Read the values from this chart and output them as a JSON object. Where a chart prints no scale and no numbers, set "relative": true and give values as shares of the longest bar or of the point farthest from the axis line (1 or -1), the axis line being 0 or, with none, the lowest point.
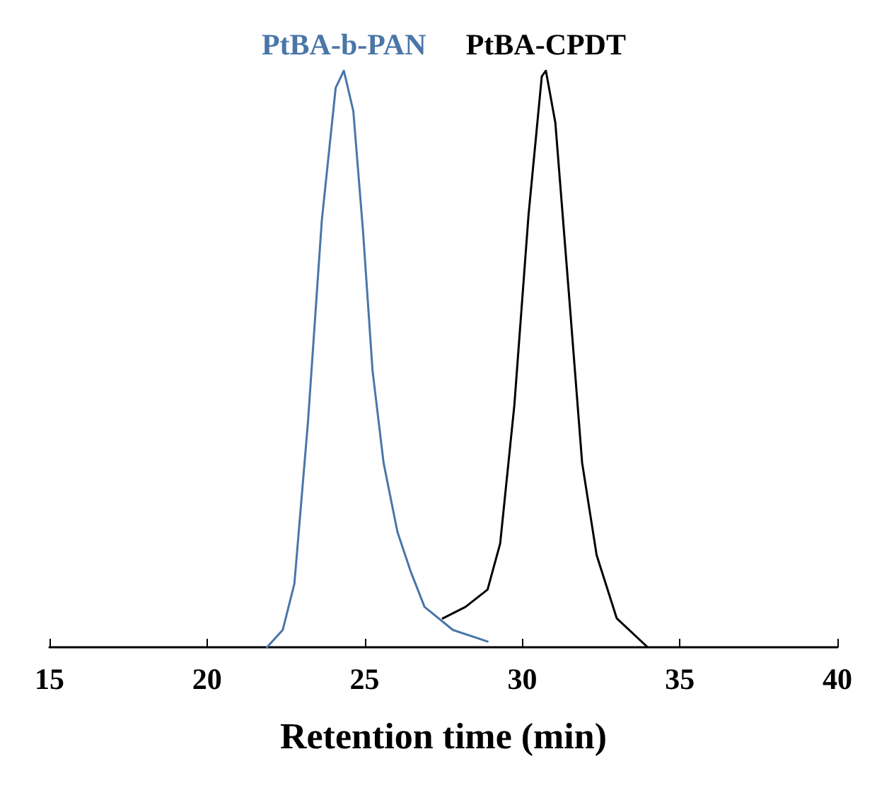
{
  "chart_data": {
    "type": "line",
    "relative": true,
    "xlabel": "Retention time (min)",
    "xlim": [
      15,
      40
    ],
    "xticks": [
      15,
      20,
      25,
      30,
      35,
      40
    ],
    "grid": false,
    "legend": false,
    "marker": "none",
    "line_style": "solid",
    "series": [
      {
        "name": "PtBA-b-PAN",
        "color": "#4a76a8",
        "x": [
          21.9,
          22.4,
          22.77,
          23.2,
          23.64,
          24.08,
          24.34,
          24.64,
          24.95,
          25.25,
          25.6,
          26.04,
          26.47,
          26.9,
          27.8,
          28.9
        ],
        "values": [
          0.0,
          0.03,
          0.11,
          0.39,
          0.74,
          0.97,
          1.0,
          0.93,
          0.72,
          0.48,
          0.32,
          0.2,
          0.13,
          0.07,
          0.03,
          0.01
        ]
      },
      {
        "name": "PtBA-CPDT",
        "color": "#000000",
        "x": [
          27.48,
          28.2,
          28.9,
          29.3,
          29.75,
          30.2,
          30.62,
          30.75,
          31.05,
          31.5,
          31.9,
          32.36,
          33.0,
          33.98
        ],
        "values": [
          0.05,
          0.07,
          0.1,
          0.18,
          0.42,
          0.75,
          0.99,
          1.0,
          0.91,
          0.6,
          0.32,
          0.16,
          0.05,
          0.0
        ]
      }
    ]
  }
}
